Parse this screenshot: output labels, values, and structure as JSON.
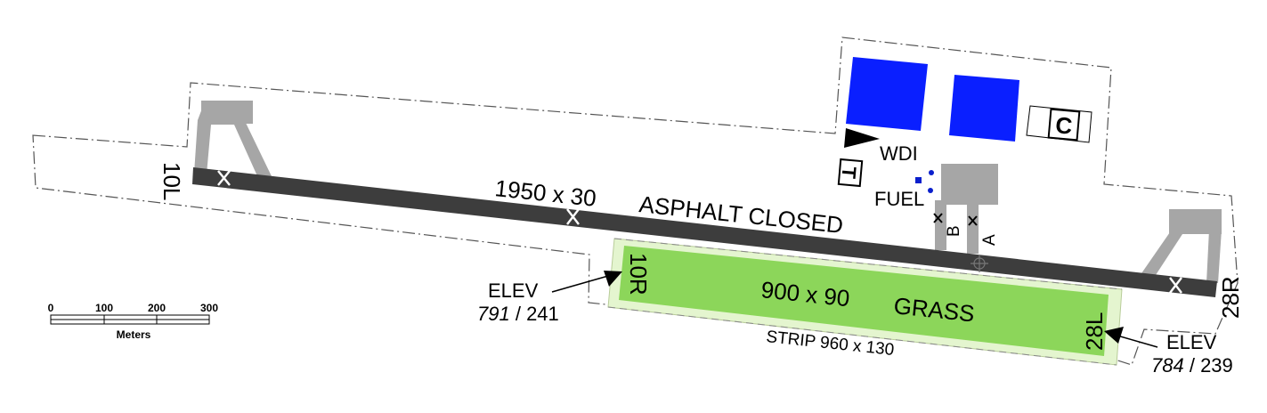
{
  "runways": {
    "asphalt": {
      "end_west": "10L",
      "end_east": "28R",
      "dimensions": "1950 x 30",
      "surface_status": "ASPHALT CLOSED"
    },
    "grass": {
      "end_west": "10R",
      "end_east": "28L",
      "dimensions": "900 x 90",
      "surface": "GRASS",
      "strip": "STRIP 960 x 130"
    }
  },
  "elevations": {
    "west": {
      "label": "ELEV",
      "feet": "791",
      "meters": "/ 241"
    },
    "east": {
      "label": "ELEV",
      "feet": "784",
      "meters": "/ 239"
    }
  },
  "facilities": {
    "wdi": "WDI",
    "fuel": "FUEL",
    "tower_symbol": "T",
    "customs_symbol": "C",
    "taxiway_b": "B",
    "taxiway_a": "A"
  },
  "scale_bar": {
    "ticks": [
      "0",
      "100",
      "200",
      "300"
    ],
    "unit": "Meters"
  },
  "colors": {
    "runway": "#3d3d3d",
    "grass_runway": "#8cd65a",
    "grass_strip": "#e4f5cf",
    "apron": "#a6a6a6",
    "building": "#0a1fff",
    "fuel_dot": "#0a1fcc"
  }
}
